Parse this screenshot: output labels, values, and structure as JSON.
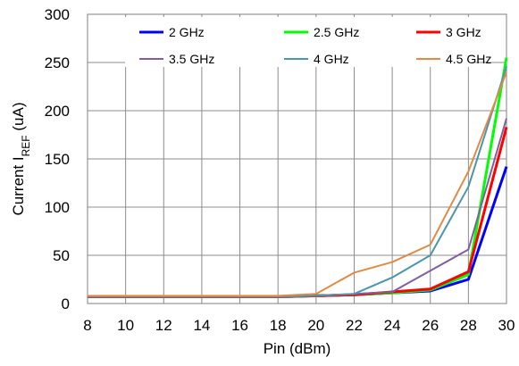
{
  "chart_data": {
    "type": "line",
    "title": "",
    "xlabel": "Pin (dBm)",
    "ylabel": {
      "main": "Current I",
      "sub": "REF",
      "unit": " (uA)"
    },
    "xlim": [
      8,
      30
    ],
    "ylim": [
      0,
      300
    ],
    "x_ticks": [
      8,
      10,
      12,
      14,
      16,
      18,
      20,
      22,
      24,
      26,
      28,
      30
    ],
    "y_ticks": [
      0,
      50,
      100,
      150,
      200,
      250,
      300
    ],
    "grid": true,
    "legend_position": "top",
    "x": [
      8,
      10,
      12,
      14,
      16,
      18,
      20,
      22,
      24,
      26,
      28,
      30
    ],
    "series": [
      {
        "name": "2 GHz",
        "color": "#0000ff",
        "width": 3,
        "values": [
          7,
          7,
          7,
          7,
          7,
          7,
          8,
          9,
          11,
          13,
          25,
          142
        ]
      },
      {
        "name": "2.5 GHz",
        "color": "#00ff00",
        "width": 3,
        "values": [
          7,
          7,
          7,
          7,
          7,
          7,
          8,
          9,
          11,
          14,
          30,
          255
        ]
      },
      {
        "name": "3 GHz",
        "color": "#ff0000",
        "width": 3,
        "values": [
          7,
          7,
          7,
          7,
          7,
          7,
          8,
          9,
          12,
          15,
          33,
          183
        ]
      },
      {
        "name": "3.5 GHz",
        "color": "#7f5f9f",
        "width": 2,
        "values": [
          7,
          7,
          7,
          7,
          7,
          7,
          8,
          10,
          12,
          34,
          56,
          192
        ]
      },
      {
        "name": "4 GHz",
        "color": "#4a96ae",
        "width": 2,
        "values": [
          7,
          7,
          7,
          7,
          7,
          7,
          8,
          10,
          27,
          50,
          121,
          246
        ]
      },
      {
        "name": "4.5 GHz",
        "color": "#e08b45",
        "width": 2,
        "values": [
          8,
          8,
          8,
          8,
          8,
          8,
          10,
          32,
          43,
          61,
          137,
          240
        ]
      }
    ]
  }
}
